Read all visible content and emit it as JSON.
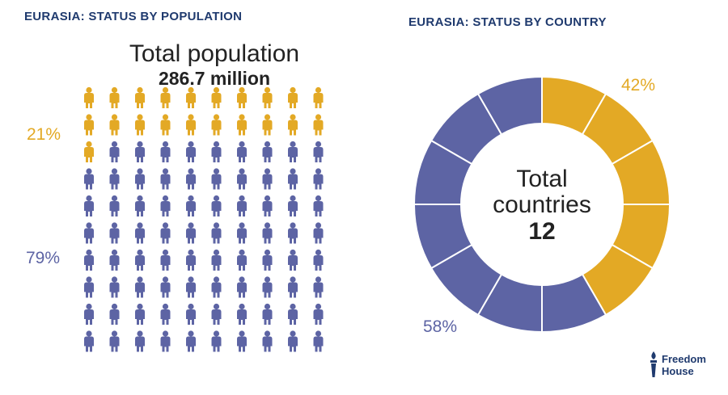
{
  "left": {
    "heading": "EURASIA: STATUS BY POPULATION",
    "total_label": "Total population",
    "total_value": "286.7 million"
  },
  "right": {
    "heading": "EURASIA: STATUS BY COUNTRY",
    "center_line1": "Total",
    "center_line2": "countries",
    "center_value": "12"
  },
  "colors": {
    "yellow": "#e3a925",
    "blue": "#5d64a4",
    "heading": "#1f3a6e"
  },
  "logo": {
    "line1": "Freedom",
    "line2": "House",
    "icon": "torch-icon"
  },
  "chart_data": [
    {
      "type": "pictogram",
      "title": "EURASIA: STATUS BY POPULATION",
      "total_label": "Total population",
      "total_value": "286.7 million",
      "icon_count": 100,
      "series": [
        {
          "name": "",
          "color": "#e3a925",
          "percent_label": "21%",
          "value": 21
        },
        {
          "name": "",
          "color": "#5d64a4",
          "percent_label": "79%",
          "value": 79
        }
      ]
    },
    {
      "type": "pie",
      "title": "EURASIA: STATUS BY COUNTRY",
      "total_label": "Total countries",
      "total_value": 12,
      "segments": 12,
      "series": [
        {
          "name": "",
          "color": "#e3a925",
          "percent_label": "42%",
          "value": 5
        },
        {
          "name": "",
          "color": "#5d64a4",
          "percent_label": "58%",
          "value": 7
        }
      ]
    }
  ]
}
